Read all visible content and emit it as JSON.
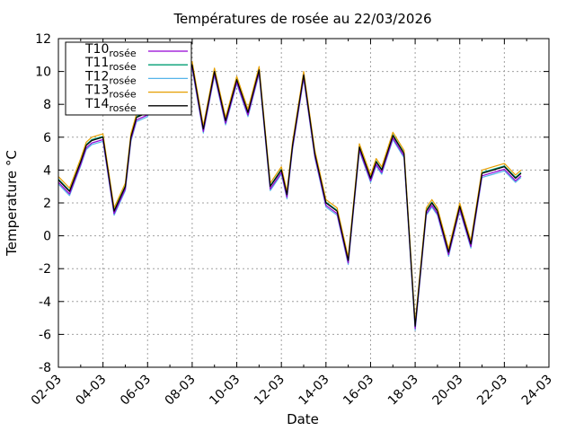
{
  "chart_data": {
    "type": "line",
    "title": "Températures de rosée au 22/03/2026",
    "xlabel": "Date",
    "ylabel": "Temperature °C",
    "xlim": [
      "2026-03-02",
      "2026-03-24"
    ],
    "ylim": [
      -8,
      12
    ],
    "y_ticks": [
      -8,
      -6,
      -4,
      -2,
      0,
      2,
      4,
      6,
      8,
      10,
      12
    ],
    "x_ticks": [
      "02-03",
      "04-03",
      "06-03",
      "08-03",
      "10-03",
      "12-03",
      "14-03",
      "16-03",
      "18-03",
      "20-03",
      "22-03",
      "24-03"
    ],
    "grid": true,
    "legend_position": "top-left",
    "series": [
      {
        "name": "T10",
        "subscript": "rosée",
        "color": "#9400d3",
        "offset": -0.15
      },
      {
        "name": "T11",
        "subscript": "rosée",
        "color": "#009e73",
        "offset": 0.05
      },
      {
        "name": "T12",
        "subscript": "rosée",
        "color": "#56b4e9",
        "offset": -0.25
      },
      {
        "name": "T13",
        "subscript": "rosée",
        "color": "#e69f00",
        "offset": 0.2
      },
      {
        "name": "T14",
        "subscript": "rosée",
        "color": "#000000",
        "offset": 0
      }
    ],
    "x": [
      "2026-03-02 00:00",
      "2026-03-02 12:00",
      "2026-03-03 00:00",
      "2026-03-03 06:00",
      "2026-03-03 12:00",
      "2026-03-04 00:00",
      "2026-03-04 12:00",
      "2026-03-05 00:00",
      "2026-03-05 06:00",
      "2026-03-05 12:00",
      "2026-03-06 00:00",
      "2026-03-06 12:00",
      "2026-03-07 00:00",
      "2026-03-07 12:00",
      "2026-03-08 00:00",
      "2026-03-08 12:00",
      "2026-03-09 00:00",
      "2026-03-09 12:00",
      "2026-03-10 00:00",
      "2026-03-10 12:00",
      "2026-03-11 00:00",
      "2026-03-11 12:00",
      "2026-03-12 00:00",
      "2026-03-12 06:00",
      "2026-03-12 12:00",
      "2026-03-13 00:00",
      "2026-03-13 12:00",
      "2026-03-14 00:00",
      "2026-03-14 12:00",
      "2026-03-15 00:00",
      "2026-03-15 12:00",
      "2026-03-16 00:00",
      "2026-03-16 06:00",
      "2026-03-16 12:00",
      "2026-03-17 00:00",
      "2026-03-17 12:00",
      "2026-03-18 00:00",
      "2026-03-18 12:00",
      "2026-03-18 18:00",
      "2026-03-19 00:00",
      "2026-03-19 12:00",
      "2026-03-20 00:00",
      "2026-03-20 12:00",
      "2026-03-21 00:00",
      "2026-03-21 12:00",
      "2026-03-22 00:00",
      "2026-03-22 12:00",
      "2026-03-22 18:00"
    ],
    "values": [
      3.4,
      2.7,
      4.5,
      5.5,
      5.8,
      6.0,
      1.5,
      3.0,
      6.0,
      7.2,
      7.5,
      9.8,
      8.8,
      8.5,
      10.4,
      6.5,
      10.0,
      7.0,
      9.5,
      7.5,
      10.1,
      3.0,
      4.0,
      2.5,
      5.5,
      9.8,
      5.0,
      2.0,
      1.5,
      -1.5,
      5.4,
      3.5,
      4.5,
      4.0,
      6.1,
      5.0,
      -5.5,
      1.5,
      2.0,
      1.5,
      -1.0,
      1.8,
      -0.5,
      3.8,
      4.0,
      4.2,
      3.5,
      3.8
    ]
  }
}
